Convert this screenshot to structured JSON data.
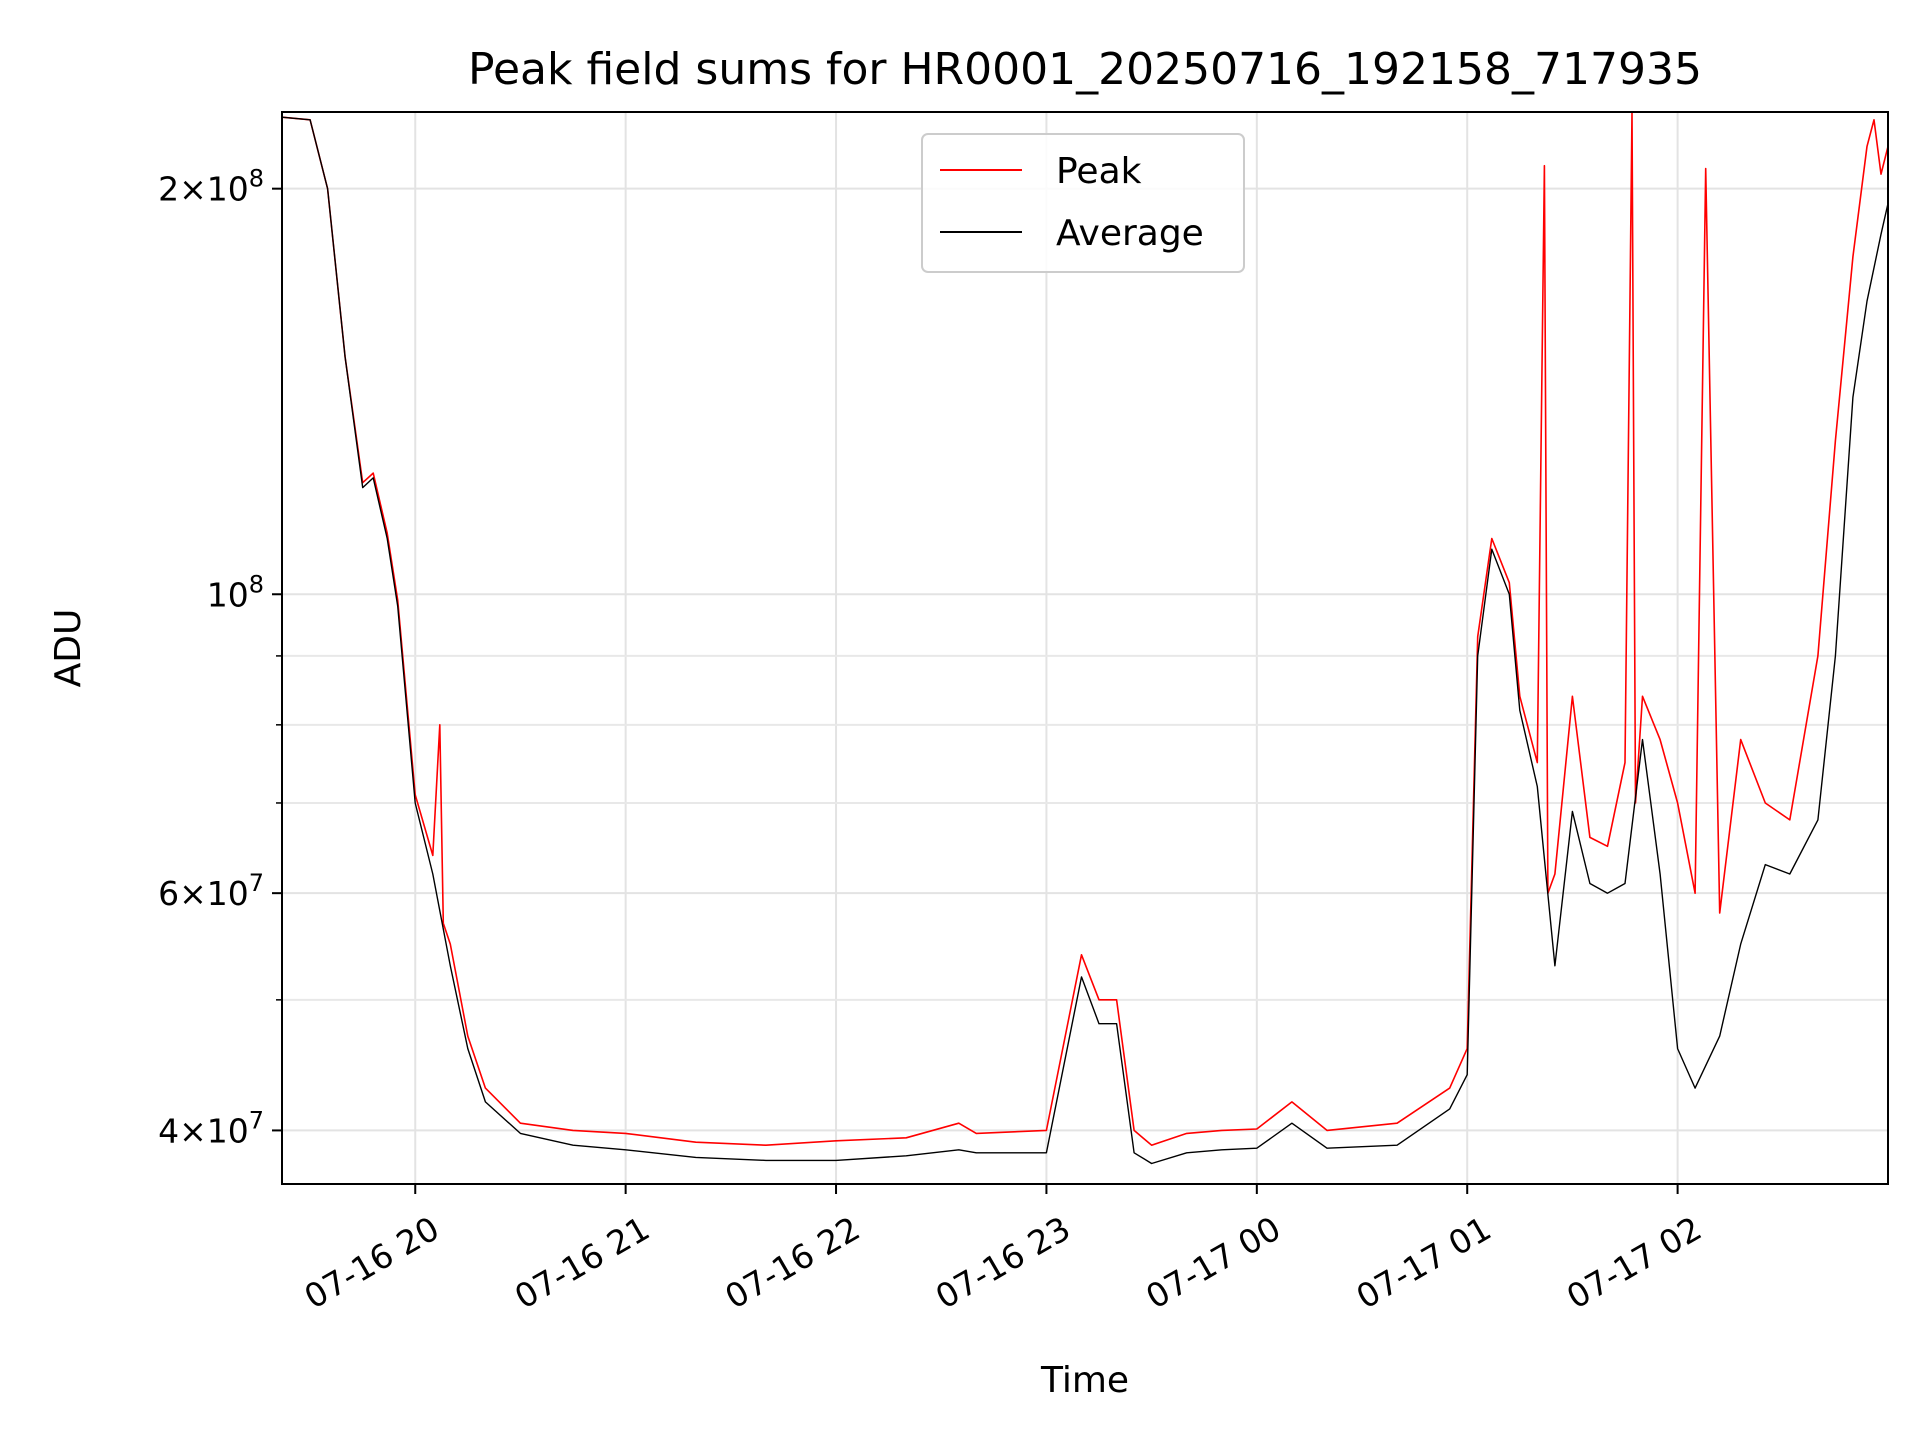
{
  "chart_data": {
    "type": "line",
    "title": "Peak field sums for HR0001_20250716_192158_717935",
    "xlabel": "Time",
    "ylabel": "ADU",
    "yscale": "log",
    "ylim": [
      36500000,
      228000000
    ],
    "xlim": [
      "07-16 19:22",
      "07-17 03:00"
    ],
    "grid": true,
    "legend": {
      "placement": "top-center",
      "entries": [
        "Peak",
        "Average"
      ]
    },
    "colors": {
      "Peak": "#ff0000",
      "Average": "#000000"
    },
    "xticks": [
      {
        "value": "07-16 20:00",
        "label": "07-16 20"
      },
      {
        "value": "07-16 21:00",
        "label": "07-16 21"
      },
      {
        "value": "07-16 22:00",
        "label": "07-16 22"
      },
      {
        "value": "07-16 23:00",
        "label": "07-16 23"
      },
      {
        "value": "07-17 00:00",
        "label": "07-17 00"
      },
      {
        "value": "07-17 01:00",
        "label": "07-17 01"
      },
      {
        "value": "07-17 02:00",
        "label": "07-17 02"
      }
    ],
    "yticks_major": [
      {
        "value": 40000000,
        "base": "4",
        "exp": "7"
      },
      {
        "value": 60000000,
        "base": "6",
        "exp": "7"
      },
      {
        "value": 100000000,
        "base": "",
        "exp": "8"
      },
      {
        "value": 200000000,
        "base": "2",
        "exp": "8"
      }
    ],
    "yticks_minor": [
      50000000,
      70000000,
      80000000,
      90000000
    ],
    "series": [
      {
        "name": "Average",
        "x": [
          "07-16 19:22",
          "07-16 19:30",
          "07-16 19:35",
          "07-16 19:40",
          "07-16 19:45",
          "07-16 19:48",
          "07-16 19:52",
          "07-16 19:55",
          "07-16 20:00",
          "07-16 20:05",
          "07-16 20:10",
          "07-16 20:15",
          "07-16 20:20",
          "07-16 20:30",
          "07-16 20:45",
          "07-16 21:00",
          "07-16 21:20",
          "07-16 21:40",
          "07-16 22:00",
          "07-16 22:20",
          "07-16 22:35",
          "07-16 22:40",
          "07-16 23:00",
          "07-16 23:10",
          "07-16 23:15",
          "07-16 23:20",
          "07-16 23:25",
          "07-16 23:30",
          "07-16 23:40",
          "07-16 23:50",
          "07-17 00:00",
          "07-17 00:10",
          "07-17 00:20",
          "07-17 00:40",
          "07-17 00:55",
          "07-17 01:00",
          "07-17 01:03",
          "07-17 01:07",
          "07-17 01:12",
          "07-17 01:15",
          "07-17 01:20",
          "07-17 01:25",
          "07-17 01:30",
          "07-17 01:35",
          "07-17 01:40",
          "07-17 01:45",
          "07-17 01:50",
          "07-17 01:55",
          "07-17 02:00",
          "07-17 02:05",
          "07-17 02:12",
          "07-17 02:18",
          "07-17 02:25",
          "07-17 02:32",
          "07-17 02:40",
          "07-17 02:45",
          "07-17 02:50",
          "07-17 02:54",
          "07-17 02:58",
          "07-17 03:00"
        ],
        "values": [
          226000000,
          225000000,
          200000000,
          150000000,
          120000000,
          122000000,
          110000000,
          98000000,
          70000000,
          62000000,
          53000000,
          46000000,
          42000000,
          39800000,
          39000000,
          38700000,
          38200000,
          38000000,
          38000000,
          38300000,
          38700000,
          38500000,
          38500000,
          52000000,
          48000000,
          48000000,
          38500000,
          37800000,
          38500000,
          38700000,
          38800000,
          40500000,
          38800000,
          39000000,
          41500000,
          44000000,
          90000000,
          108000000,
          100000000,
          82000000,
          72000000,
          53000000,
          69000000,
          61000000,
          60000000,
          61000000,
          78000000,
          62000000,
          46000000,
          43000000,
          47000000,
          55000000,
          63000000,
          62000000,
          68000000,
          90000000,
          140000000,
          165000000,
          185000000,
          195000000
        ]
      },
      {
        "name": "Peak",
        "x": [
          "07-16 19:22",
          "07-16 19:30",
          "07-16 19:35",
          "07-16 19:40",
          "07-16 19:45",
          "07-16 19:48",
          "07-16 19:52",
          "07-16 19:55",
          "07-16 20:00",
          "07-16 20:05",
          "07-16 20:07",
          "07-16 20:08",
          "07-16 20:10",
          "07-16 20:15",
          "07-16 20:20",
          "07-16 20:30",
          "07-16 20:45",
          "07-16 21:00",
          "07-16 21:20",
          "07-16 21:40",
          "07-16 22:00",
          "07-16 22:20",
          "07-16 22:35",
          "07-16 22:40",
          "07-16 23:00",
          "07-16 23:10",
          "07-16 23:15",
          "07-16 23:20",
          "07-16 23:25",
          "07-16 23:30",
          "07-16 23:40",
          "07-16 23:50",
          "07-17 00:00",
          "07-17 00:10",
          "07-17 00:20",
          "07-17 00:40",
          "07-17 00:55",
          "07-17 01:00",
          "07-17 01:03",
          "07-17 01:07",
          "07-17 01:12",
          "07-17 01:15",
          "07-17 01:20",
          "07-17 01:22",
          "07-17 01:23",
          "07-17 01:25",
          "07-17 01:30",
          "07-17 01:35",
          "07-17 01:40",
          "07-17 01:45",
          "07-17 01:47",
          "07-17 01:48",
          "07-17 01:50",
          "07-17 01:55",
          "07-17 02:00",
          "07-17 02:05",
          "07-17 02:08",
          "07-17 02:12",
          "07-17 02:18",
          "07-17 02:25",
          "07-17 02:32",
          "07-17 02:40",
          "07-17 02:45",
          "07-17 02:50",
          "07-17 02:54",
          "07-17 02:56",
          "07-17 02:58",
          "07-17 03:00"
        ],
        "values": [
          226000000,
          225000000,
          200000000,
          150000000,
          121000000,
          123000000,
          111000000,
          99000000,
          71000000,
          64000000,
          80000000,
          57000000,
          55000000,
          47000000,
          43000000,
          40500000,
          40000000,
          39800000,
          39200000,
          39000000,
          39300000,
          39500000,
          40500000,
          39800000,
          40000000,
          54000000,
          50000000,
          50000000,
          40000000,
          39000000,
          39800000,
          40000000,
          40100000,
          42000000,
          40000000,
          40500000,
          43000000,
          46000000,
          93000000,
          110000000,
          102000000,
          84000000,
          75000000,
          208000000,
          60000000,
          62000000,
          84000000,
          66000000,
          65000000,
          75000000,
          228000000,
          70000000,
          84000000,
          78000000,
          70000000,
          60000000,
          207000000,
          58000000,
          78000000,
          70000000,
          68000000,
          90000000,
          130000000,
          178000000,
          215000000,
          225000000,
          205000000,
          215000000
        ]
      }
    ]
  }
}
